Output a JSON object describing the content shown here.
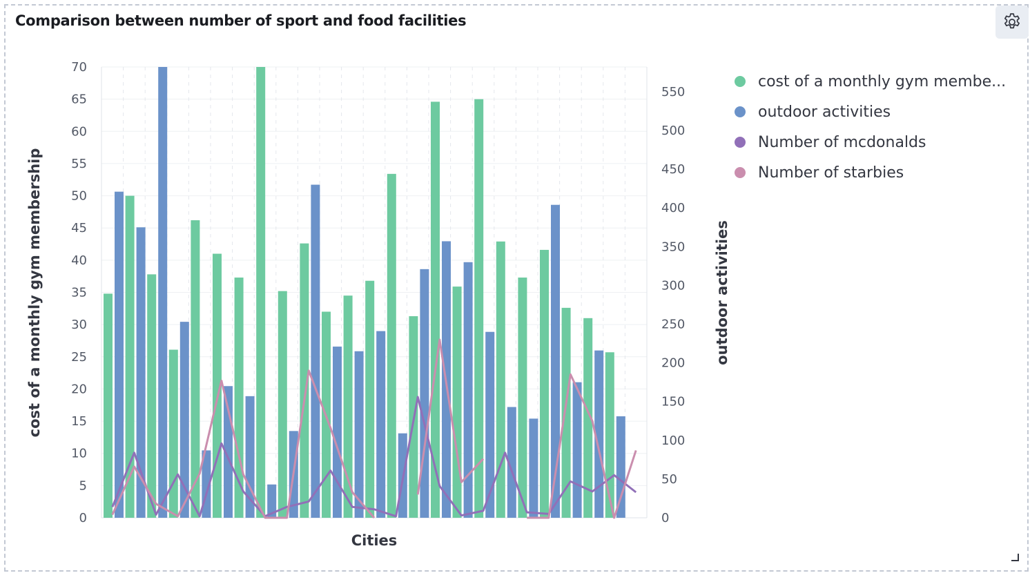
{
  "panel": {
    "title": "Comparison between number of sport and food facilities",
    "settings_icon": "gear-icon",
    "resize_icon": "resize-handle-icon"
  },
  "legend": [
    {
      "label": "cost of a monthly gym membe...",
      "color": "#6dcaa0"
    },
    {
      "label": "outdoor activities",
      "color": "#6b92c9"
    },
    {
      "label": "Number of mcdonalds",
      "color": "#9170b8"
    },
    {
      "label": "Number of starbies",
      "color": "#ca8eae"
    }
  ],
  "chart_data": {
    "type": "bar",
    "title": "Comparison between number of sport and food facilities",
    "xlabel": "Cities",
    "ylabel_left": "cost of a monthly gym membership",
    "ylabel_right": "outdoor activities",
    "ylim_left": [
      0,
      70
    ],
    "ylim_right": [
      0,
      582
    ],
    "yticks_left": [
      "0",
      "5",
      "10",
      "15",
      "20",
      "25",
      "30",
      "35",
      "40",
      "45",
      "50",
      "55",
      "60",
      "65",
      "70"
    ],
    "yticks_right": [
      "0",
      "50",
      "100",
      "150",
      "200",
      "250",
      "300",
      "350",
      "400",
      "450",
      "500",
      "550"
    ],
    "x_tick_labels_visible": false,
    "grid": true,
    "legend_position": "right",
    "series": [
      {
        "name": "cost of a monthly gym membership",
        "axis": "left",
        "kind": "bar",
        "color": "#6dcaa0",
        "values": [
          34.8,
          50,
          37.8,
          26.1,
          46.2,
          41,
          37.3,
          70,
          35.2,
          42.6,
          32,
          34.5,
          36.8,
          53.4,
          31.3,
          64.6,
          35.9,
          65,
          42.9,
          37.3,
          41.6,
          32.6,
          31,
          25.7,
          null
        ]
      },
      {
        "name": "outdoor activities",
        "axis": "right",
        "kind": "bar",
        "color": "#6b92c9",
        "values": [
          421,
          375,
          582,
          253,
          87,
          170,
          157,
          43,
          112,
          430,
          221,
          215,
          241,
          109,
          321,
          357,
          330,
          240,
          143,
          128,
          404,
          175,
          216,
          131,
          null
        ]
      },
      {
        "name": "Number of mcdonalds",
        "axis": "right",
        "kind": "line",
        "color": "#9170b8",
        "values": [
          14,
          84,
          4,
          56,
          2,
          96,
          34,
          2,
          14,
          21,
          61,
          14,
          11,
          2,
          156,
          41,
          3,
          9,
          84,
          7,
          5,
          47,
          34,
          55,
          33
        ]
      },
      {
        "name": "Number of starbies",
        "axis": "right",
        "kind": "line",
        "color": "#ca8eae",
        "values": [
          4,
          66,
          18,
          2,
          57,
          177,
          56,
          0,
          0,
          190,
          116,
          33,
          0,
          null,
          30,
          230,
          46,
          76,
          null,
          0,
          0,
          185,
          125,
          0,
          87
        ]
      }
    ]
  }
}
